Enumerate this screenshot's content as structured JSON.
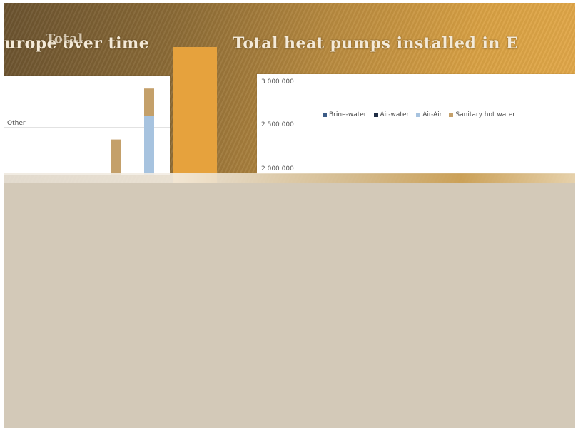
{
  "titles": {
    "left": "urope over time",
    "overlap": "Total",
    "right": "Total heat pumps installed in E"
  },
  "colors": {
    "brine_water": "#3b5b86",
    "air_water": "#1f2d45",
    "air_air": "#a7c3df",
    "sanitary_hot_water": "#c4a06a",
    "other": "#c9c9c9",
    "banner_accent": "#e6a23d"
  },
  "chart_data": [
    {
      "type": "bar",
      "title": "",
      "legend": {
        "entries": [
          "Other"
        ],
        "placement": "top-left"
      },
      "stacked": true,
      "categories": [
        "",
        ""
      ],
      "series": [
        {
          "name": "",
          "values": [
            0,
            2
          ]
        },
        {
          "name": "",
          "values": [
            1.2,
            0.9
          ]
        }
      ],
      "grid": true,
      "ylim": [
        0,
        3
      ]
    },
    {
      "type": "bar",
      "title": "",
      "legend": {
        "entries": [
          "Brine-water",
          "Air-water",
          "Air-Air",
          "Sanitary hot water"
        ],
        "placement": "top"
      },
      "yticks": [
        "3 000 000",
        "2 500 000",
        "2 000 000"
      ],
      "ylim": [
        2000000,
        3000000
      ],
      "grid": true
    }
  ]
}
